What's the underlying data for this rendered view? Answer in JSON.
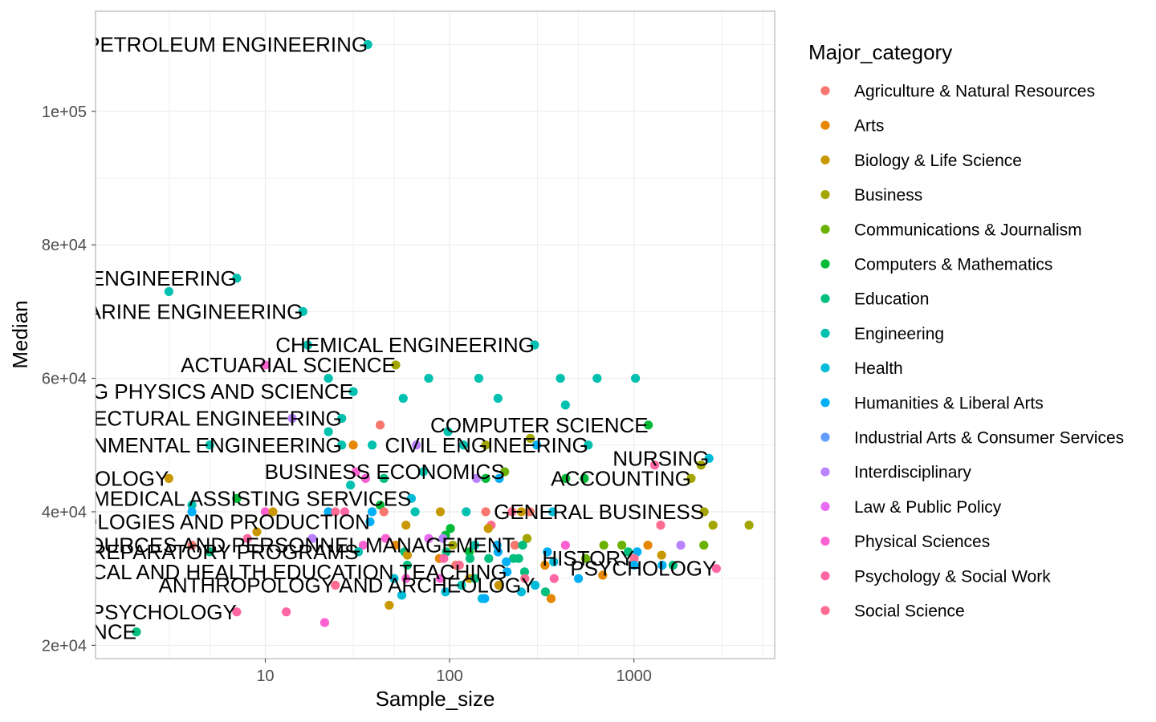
{
  "chart_data": {
    "type": "scatter",
    "xlabel": "Sample_size",
    "ylabel": "Median",
    "x_scale": "log10",
    "xlim": [
      1.2,
      5800
    ],
    "ylim": [
      18000,
      115000
    ],
    "x_ticks": [
      10,
      100,
      1000
    ],
    "x_tick_labels": [
      "10",
      "100",
      "1000"
    ],
    "y_ticks": [
      20000,
      40000,
      60000,
      80000,
      100000
    ],
    "y_tick_labels": [
      "2e+04",
      "4e+04",
      "6e+04",
      "8e+04",
      "1e+05"
    ],
    "grid": true,
    "legend_title": "Major_category",
    "legend_position": "right",
    "categories": [
      {
        "name": "Agriculture & Natural Resources",
        "color": "#F8766D"
      },
      {
        "name": "Arts",
        "color": "#E58700"
      },
      {
        "name": "Biology & Life Science",
        "color": "#C99800"
      },
      {
        "name": "Business",
        "color": "#A3A500"
      },
      {
        "name": "Communications & Journalism",
        "color": "#6BB100"
      },
      {
        "name": "Computers & Mathematics",
        "color": "#00BA38"
      },
      {
        "name": "Education",
        "color": "#00BF7D"
      },
      {
        "name": "Engineering",
        "color": "#00C0AF"
      },
      {
        "name": "Health",
        "color": "#00BCD8"
      },
      {
        "name": "Humanities & Liberal Arts",
        "color": "#00B0F6"
      },
      {
        "name": "Industrial Arts & Consumer Services",
        "color": "#619CFF"
      },
      {
        "name": "Interdisciplinary",
        "color": "#B983FF"
      },
      {
        "name": "Law & Public Policy",
        "color": "#E76BF3"
      },
      {
        "name": "Physical Sciences",
        "color": "#FD61D1"
      },
      {
        "name": "Psychology & Social Work",
        "color": "#FF67A4"
      },
      {
        "name": "Social Science",
        "color": "#FF6C91"
      }
    ],
    "points": [
      {
        "x": 36,
        "y": 110000,
        "c": 7
      },
      {
        "x": 3,
        "y": 73000,
        "c": 7
      },
      {
        "x": 7,
        "y": 75000,
        "c": 7
      },
      {
        "x": 16,
        "y": 70000,
        "c": 7
      },
      {
        "x": 17,
        "y": 65000,
        "c": 7
      },
      {
        "x": 289,
        "y": 65000,
        "c": 7
      },
      {
        "x": 10,
        "y": 62000,
        "c": 13
      },
      {
        "x": 51,
        "y": 62000,
        "c": 3
      },
      {
        "x": 22,
        "y": 60000,
        "c": 7
      },
      {
        "x": 77,
        "y": 60000,
        "c": 7
      },
      {
        "x": 144,
        "y": 60000,
        "c": 7
      },
      {
        "x": 399,
        "y": 60000,
        "c": 7
      },
      {
        "x": 631,
        "y": 60000,
        "c": 7
      },
      {
        "x": 1019,
        "y": 60000,
        "c": 7
      },
      {
        "x": 30,
        "y": 58000,
        "c": 7
      },
      {
        "x": 56,
        "y": 57000,
        "c": 7
      },
      {
        "x": 183,
        "y": 57000,
        "c": 7
      },
      {
        "x": 425,
        "y": 56000,
        "c": 7
      },
      {
        "x": 14,
        "y": 54000,
        "c": 11
      },
      {
        "x": 26,
        "y": 54000,
        "c": 7
      },
      {
        "x": 42,
        "y": 53000,
        "c": 0
      },
      {
        "x": 1197,
        "y": 53000,
        "c": 5
      },
      {
        "x": 22,
        "y": 52000,
        "c": 7
      },
      {
        "x": 98,
        "y": 52000,
        "c": 7
      },
      {
        "x": 274,
        "y": 51000,
        "c": 3
      },
      {
        "x": 5,
        "y": 50000,
        "c": 7
      },
      {
        "x": 26,
        "y": 50000,
        "c": 7
      },
      {
        "x": 30,
        "y": 50000,
        "c": 1
      },
      {
        "x": 38,
        "y": 50000,
        "c": 7
      },
      {
        "x": 66,
        "y": 50000,
        "c": 11
      },
      {
        "x": 119,
        "y": 50000,
        "c": 7
      },
      {
        "x": 157,
        "y": 50000,
        "c": 3
      },
      {
        "x": 297,
        "y": 50000,
        "c": 9
      },
      {
        "x": 565,
        "y": 50000,
        "c": 7
      },
      {
        "x": 2554,
        "y": 48000,
        "c": 8
      },
      {
        "x": 1296,
        "y": 47000,
        "c": 14
      },
      {
        "x": 2312,
        "y": 47000,
        "c": 3
      },
      {
        "x": 31,
        "y": 46000,
        "c": 13
      },
      {
        "x": 72,
        "y": 46000,
        "c": 7
      },
      {
        "x": 199,
        "y": 46000,
        "c": 4
      },
      {
        "x": 3,
        "y": 45000,
        "c": 2
      },
      {
        "x": 35,
        "y": 45000,
        "c": 13
      },
      {
        "x": 44,
        "y": 45000,
        "c": 6
      },
      {
        "x": 140,
        "y": 45000,
        "c": 11
      },
      {
        "x": 157,
        "y": 45000,
        "c": 5
      },
      {
        "x": 186,
        "y": 45000,
        "c": 9
      },
      {
        "x": 427,
        "y": 45000,
        "c": 5
      },
      {
        "x": 538,
        "y": 45000,
        "c": 5
      },
      {
        "x": 2042,
        "y": 45000,
        "c": 3
      },
      {
        "x": 29,
        "y": 44000,
        "c": 7
      },
      {
        "x": 62,
        "y": 42000,
        "c": 8
      },
      {
        "x": 4,
        "y": 41000,
        "c": 7
      },
      {
        "x": 7,
        "y": 42000,
        "c": 5
      },
      {
        "x": 42,
        "y": 41000,
        "c": 5
      },
      {
        "x": 4,
        "y": 40000,
        "c": 9
      },
      {
        "x": 10,
        "y": 40000,
        "c": 13
      },
      {
        "x": 11,
        "y": 40000,
        "c": 2
      },
      {
        "x": 22,
        "y": 40000,
        "c": 9
      },
      {
        "x": 24,
        "y": 40000,
        "c": 15
      },
      {
        "x": 27,
        "y": 40000,
        "c": 14
      },
      {
        "x": 38,
        "y": 40000,
        "c": 9
      },
      {
        "x": 44,
        "y": 40000,
        "c": 0
      },
      {
        "x": 65,
        "y": 40000,
        "c": 7
      },
      {
        "x": 89,
        "y": 40000,
        "c": 2
      },
      {
        "x": 123,
        "y": 40000,
        "c": 7
      },
      {
        "x": 157,
        "y": 40000,
        "c": 0
      },
      {
        "x": 218,
        "y": 40000,
        "c": 15
      },
      {
        "x": 245,
        "y": 40000,
        "c": 2
      },
      {
        "x": 273,
        "y": 40000,
        "c": 0
      },
      {
        "x": 363,
        "y": 40000,
        "c": 8
      },
      {
        "x": 2403,
        "y": 40000,
        "c": 3
      },
      {
        "x": 37,
        "y": 38500,
        "c": 9
      },
      {
        "x": 168,
        "y": 38000,
        "c": 15
      },
      {
        "x": 1396,
        "y": 38000,
        "c": 15
      },
      {
        "x": 2684,
        "y": 38000,
        "c": 3
      },
      {
        "x": 4212,
        "y": 38000,
        "c": 3
      },
      {
        "x": 58,
        "y": 38000,
        "c": 2
      },
      {
        "x": 9,
        "y": 37000,
        "c": 2
      },
      {
        "x": 101,
        "y": 37500,
        "c": 5
      },
      {
        "x": 162,
        "y": 37500,
        "c": 2
      },
      {
        "x": 95,
        "y": 36500,
        "c": 5
      },
      {
        "x": 8,
        "y": 36000,
        "c": 14
      },
      {
        "x": 18,
        "y": 36000,
        "c": 11
      },
      {
        "x": 45,
        "y": 36000,
        "c": 13
      },
      {
        "x": 77,
        "y": 36000,
        "c": 12
      },
      {
        "x": 92,
        "y": 36000,
        "c": 11
      },
      {
        "x": 263,
        "y": 36000,
        "c": 3
      },
      {
        "x": 4,
        "y": 35000,
        "c": 0
      },
      {
        "x": 34,
        "y": 35000,
        "c": 13
      },
      {
        "x": 51,
        "y": 35000,
        "c": 1
      },
      {
        "x": 104,
        "y": 35000,
        "c": 3
      },
      {
        "x": 137,
        "y": 35000,
        "c": 7
      },
      {
        "x": 181,
        "y": 35000,
        "c": 9
      },
      {
        "x": 226,
        "y": 35000,
        "c": 0
      },
      {
        "x": 249,
        "y": 35000,
        "c": 6
      },
      {
        "x": 425,
        "y": 35000,
        "c": 13
      },
      {
        "x": 686,
        "y": 35000,
        "c": 4
      },
      {
        "x": 860,
        "y": 35000,
        "c": 4
      },
      {
        "x": 1190,
        "y": 35000,
        "c": 1
      },
      {
        "x": 1795,
        "y": 35000,
        "c": 11
      },
      {
        "x": 2394,
        "y": 35000,
        "c": 4
      },
      {
        "x": 5,
        "y": 34000,
        "c": 6
      },
      {
        "x": 32,
        "y": 34000,
        "c": 7
      },
      {
        "x": 57,
        "y": 34000,
        "c": 6
      },
      {
        "x": 96,
        "y": 34000,
        "c": 6
      },
      {
        "x": 128,
        "y": 34000,
        "c": 5
      },
      {
        "x": 183,
        "y": 34000,
        "c": 9
      },
      {
        "x": 339,
        "y": 34000,
        "c": 9
      },
      {
        "x": 931,
        "y": 34000,
        "c": 6
      },
      {
        "x": 1041,
        "y": 34000,
        "c": 9
      },
      {
        "x": 59,
        "y": 33500,
        "c": 2
      },
      {
        "x": 88,
        "y": 33000,
        "c": 1
      },
      {
        "x": 93,
        "y": 33000,
        "c": 14
      },
      {
        "x": 129,
        "y": 33000,
        "c": 6
      },
      {
        "x": 163,
        "y": 33000,
        "c": 6
      },
      {
        "x": 222,
        "y": 33000,
        "c": 6
      },
      {
        "x": 237,
        "y": 33000,
        "c": 6
      },
      {
        "x": 547,
        "y": 33000,
        "c": 4
      },
      {
        "x": 1413,
        "y": 33500,
        "c": 2
      },
      {
        "x": 1003,
        "y": 33000,
        "c": 15
      },
      {
        "x": 203,
        "y": 32500,
        "c": 9
      },
      {
        "x": 367,
        "y": 32500,
        "c": 8
      },
      {
        "x": 59,
        "y": 32000,
        "c": 6
      },
      {
        "x": 108,
        "y": 32000,
        "c": 0
      },
      {
        "x": 113,
        "y": 32000,
        "c": 15
      },
      {
        "x": 329,
        "y": 32000,
        "c": 1
      },
      {
        "x": 1003,
        "y": 32000,
        "c": 9
      },
      {
        "x": 1423,
        "y": 32000,
        "c": 9
      },
      {
        "x": 1629,
        "y": 32000,
        "c": 6
      },
      {
        "x": 2800,
        "y": 31500,
        "c": 14
      },
      {
        "x": 205,
        "y": 31000,
        "c": 9
      },
      {
        "x": 255,
        "y": 31000,
        "c": 6
      },
      {
        "x": 677,
        "y": 30500,
        "c": 1
      },
      {
        "x": 50,
        "y": 30000,
        "c": 8
      },
      {
        "x": 58,
        "y": 30000,
        "c": 13
      },
      {
        "x": 89,
        "y": 30000,
        "c": 13
      },
      {
        "x": 128,
        "y": 30000,
        "c": 2
      },
      {
        "x": 137,
        "y": 30000,
        "c": 6
      },
      {
        "x": 256,
        "y": 30000,
        "c": 15
      },
      {
        "x": 369,
        "y": 30000,
        "c": 14
      },
      {
        "x": 500,
        "y": 30000,
        "c": 9
      },
      {
        "x": 24,
        "y": 29000,
        "c": 15
      },
      {
        "x": 116,
        "y": 29000,
        "c": 7
      },
      {
        "x": 185,
        "y": 29000,
        "c": 2
      },
      {
        "x": 291,
        "y": 29000,
        "c": 8
      },
      {
        "x": 95,
        "y": 28000,
        "c": 8
      },
      {
        "x": 245,
        "y": 28000,
        "c": 8
      },
      {
        "x": 331,
        "y": 28000,
        "c": 6
      },
      {
        "x": 55,
        "y": 27500,
        "c": 8
      },
      {
        "x": 150,
        "y": 27000,
        "c": 8
      },
      {
        "x": 355,
        "y": 27000,
        "c": 1
      },
      {
        "x": 155,
        "y": 27000,
        "c": 9
      },
      {
        "x": 47,
        "y": 26000,
        "c": 2
      },
      {
        "x": 7,
        "y": 25000,
        "c": 14
      },
      {
        "x": 13,
        "y": 25000,
        "c": 14
      },
      {
        "x": 21,
        "y": 23400,
        "c": 13
      },
      {
        "x": 2,
        "y": 22000,
        "c": 6
      }
    ],
    "labels": [
      {
        "text": "PETROLEUM ENGINEERING",
        "x": 36,
        "y": 110000
      },
      {
        "text": "MINING AND MINERAL ENGINEERING",
        "x": 7,
        "y": 75000
      },
      {
        "text": "MARINE ENGINEERING",
        "x": 16,
        "y": 70000
      },
      {
        "text": "CHEMICAL ENGINEERING",
        "x": 289,
        "y": 65000
      },
      {
        "text": "ACTUARIAL SCIENCE",
        "x": 51,
        "y": 62000
      },
      {
        "text": "ENGINEERING PHYSICS AND SCIENCE",
        "x": 30,
        "y": 58000
      },
      {
        "text": "ARCHITECTURAL ENGINEERING",
        "x": 26,
        "y": 54000
      },
      {
        "text": "COMPUTER SCIENCE",
        "x": 1197,
        "y": 53000
      },
      {
        "text": "ENVIRONMENTAL ENGINEERING",
        "x": 26,
        "y": 50000
      },
      {
        "text": "CIVIL ENGINEERING",
        "x": 565,
        "y": 50000
      },
      {
        "text": "NURSING",
        "x": 2554,
        "y": 48000
      },
      {
        "text": "BUSINESS ECONOMICS",
        "x": 199,
        "y": 46000
      },
      {
        "text": "ZOOLOGY",
        "x": 3,
        "y": 45000
      },
      {
        "text": "ACCOUNTING",
        "x": 2042,
        "y": 45000
      },
      {
        "text": "MEDICAL ASSISTING SERVICES",
        "x": 62,
        "y": 42000
      },
      {
        "text": "GENERAL BUSINESS",
        "x": 2403,
        "y": 40000
      },
      {
        "text": "TECHNOLOGIES AND PRODUCTION",
        "x": 37,
        "y": 38500
      },
      {
        "text": "HUMAN RESOURCES AND PERSONNEL MANAGEMENT",
        "x": 226,
        "y": 35000
      },
      {
        "text": "PREPARATORY PROGRAMS",
        "x": 32,
        "y": 34000
      },
      {
        "text": "HISTORY",
        "x": 1003,
        "y": 33000
      },
      {
        "text": "PHYSICAL AND HEALTH EDUCATION TEACHING",
        "x": 205,
        "y": 31000
      },
      {
        "text": "PSYCHOLOGY",
        "x": 2800,
        "y": 31500
      },
      {
        "text": "ANTHROPOLOGY AND ARCHEOLOGY",
        "x": 291,
        "y": 29000
      },
      {
        "text": "EDUCATIONAL PSYCHOLOGY",
        "x": 7,
        "y": 25000
      },
      {
        "text": "LIBRARY SCIENCE",
        "x": 2,
        "y": 22000
      }
    ]
  }
}
